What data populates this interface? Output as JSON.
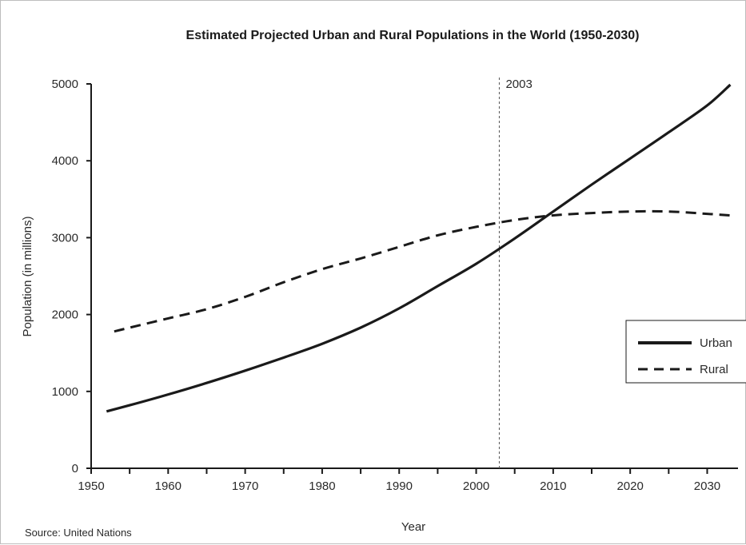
{
  "chart_data": {
    "type": "line",
    "title": "Estimated Projected Urban and Rural Populations in the World (1950-2030)",
    "xlabel": "Year",
    "ylabel": "Population (in millions)",
    "xlim": [
      1950,
      2034
    ],
    "ylim": [
      0,
      5000
    ],
    "x_ticks": [
      1950,
      1960,
      1970,
      1980,
      1990,
      2000,
      2010,
      2020,
      2030
    ],
    "y_ticks": [
      0,
      1000,
      2000,
      3000,
      4000,
      5000
    ],
    "grid": false,
    "legend_position": "right",
    "annotations": [
      {
        "x": 2003,
        "label": "2003"
      }
    ],
    "source": "Source: United Nations",
    "series": [
      {
        "name": "Urban",
        "style": "solid",
        "x": [
          1952,
          1955,
          1960,
          1965,
          1970,
          1975,
          1980,
          1985,
          1990,
          1995,
          2000,
          2005,
          2010,
          2015,
          2020,
          2025,
          2030,
          2033
        ],
        "y": [
          740,
          820,
          960,
          1110,
          1270,
          1440,
          1620,
          1830,
          2080,
          2370,
          2660,
          2990,
          3340,
          3690,
          4030,
          4370,
          4720,
          4990
        ]
      },
      {
        "name": "Rural",
        "style": "dashed",
        "x": [
          1953,
          1955,
          1960,
          1965,
          1970,
          1975,
          1980,
          1985,
          1990,
          1995,
          2000,
          2005,
          2010,
          2015,
          2020,
          2025,
          2030,
          2033
        ],
        "y": [
          1780,
          1830,
          1950,
          2070,
          2230,
          2420,
          2590,
          2730,
          2880,
          3030,
          3140,
          3230,
          3290,
          3320,
          3340,
          3340,
          3310,
          3290
        ]
      }
    ]
  }
}
